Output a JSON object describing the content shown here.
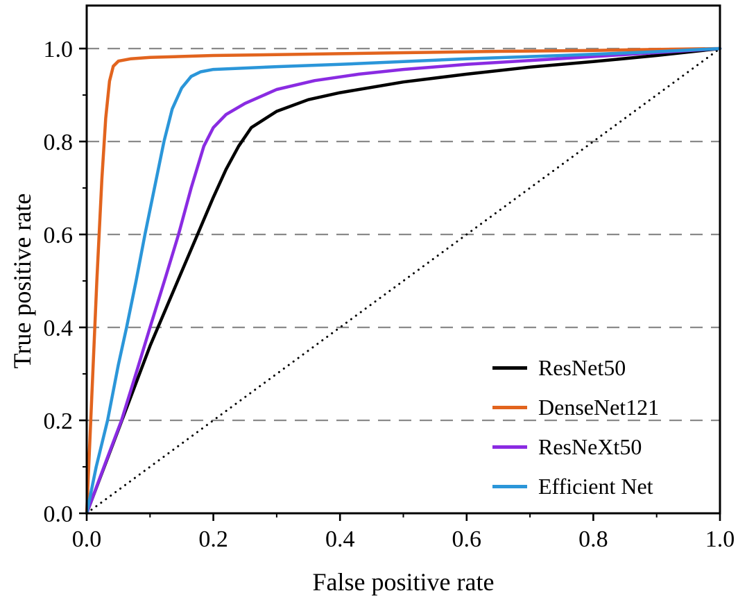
{
  "figure": {
    "background": "#ffffff"
  },
  "chart_data": {
    "type": "line",
    "chart_kind": "roc-curve",
    "title": "",
    "xlabel": "False positive rate",
    "ylabel": "True positive rate",
    "xlim": [
      0.0,
      1.0
    ],
    "ylim": [
      0.0,
      1.09
    ],
    "grid": "horizontal dashed gray gridlines at y = 0.2, 0.4, 0.6, 0.8, 1.0",
    "legend_position": "lower-right",
    "colors": {
      "grid": "#8a8a8a",
      "axis": "#000000",
      "background": "#ffffff"
    },
    "xticks": {
      "values": [
        0,
        0.2,
        0.4,
        0.6,
        0.8,
        1.0
      ],
      "labels": [
        "0.0",
        "0.2",
        "0.4",
        "0.6",
        "0.8",
        "1.0"
      ]
    },
    "yticks": {
      "values": [
        0,
        0.2,
        0.4,
        0.6,
        0.8,
        1.0
      ],
      "labels": [
        "0.0",
        "0.2",
        "0.4",
        "0.6",
        "0.8",
        "1.0"
      ]
    },
    "minor_ticks": [
      0.1,
      0.3,
      0.5,
      0.7,
      0.9
    ],
    "reference_line": {
      "name": "chance diagonal",
      "style": "dotted",
      "color": "#000000",
      "from": [
        0,
        0
      ],
      "to": [
        1,
        1
      ]
    },
    "series": [
      {
        "name": "ResNet50",
        "color": "#000000",
        "points": [
          [
            0,
            0
          ],
          [
            0.05,
            0.18
          ],
          [
            0.1,
            0.36
          ],
          [
            0.15,
            0.52
          ],
          [
            0.175,
            0.6
          ],
          [
            0.2,
            0.68
          ],
          [
            0.22,
            0.74
          ],
          [
            0.24,
            0.79
          ],
          [
            0.26,
            0.83
          ],
          [
            0.3,
            0.865
          ],
          [
            0.35,
            0.89
          ],
          [
            0.4,
            0.905
          ],
          [
            0.5,
            0.928
          ],
          [
            0.6,
            0.945
          ],
          [
            0.7,
            0.96
          ],
          [
            0.8,
            0.972
          ],
          [
            0.9,
            0.985
          ],
          [
            1,
            1
          ]
        ]
      },
      {
        "name": "DenseNet121",
        "color": "#e2641e",
        "points": [
          [
            0,
            0
          ],
          [
            0.008,
            0.25
          ],
          [
            0.016,
            0.5
          ],
          [
            0.024,
            0.72
          ],
          [
            0.03,
            0.85
          ],
          [
            0.036,
            0.93
          ],
          [
            0.042,
            0.962
          ],
          [
            0.05,
            0.973
          ],
          [
            0.07,
            0.978
          ],
          [
            0.1,
            0.981
          ],
          [
            0.15,
            0.983
          ],
          [
            0.2,
            0.985
          ],
          [
            0.3,
            0.987
          ],
          [
            0.4,
            0.989
          ],
          [
            0.5,
            0.991
          ],
          [
            0.65,
            0.994
          ],
          [
            0.8,
            0.996
          ],
          [
            0.9,
            0.998
          ],
          [
            1,
            1
          ]
        ]
      },
      {
        "name": "ResNeXt50",
        "color": "#8a2be2",
        "points": [
          [
            0,
            0
          ],
          [
            0.03,
            0.11
          ],
          [
            0.055,
            0.2
          ],
          [
            0.08,
            0.31
          ],
          [
            0.1,
            0.4
          ],
          [
            0.125,
            0.51
          ],
          [
            0.145,
            0.6
          ],
          [
            0.165,
            0.7
          ],
          [
            0.185,
            0.79
          ],
          [
            0.2,
            0.83
          ],
          [
            0.22,
            0.858
          ],
          [
            0.25,
            0.882
          ],
          [
            0.3,
            0.912
          ],
          [
            0.36,
            0.931
          ],
          [
            0.43,
            0.945
          ],
          [
            0.5,
            0.955
          ],
          [
            0.6,
            0.966
          ],
          [
            0.72,
            0.976
          ],
          [
            0.85,
            0.987
          ],
          [
            1,
            1
          ]
        ]
      },
      {
        "name": "Efficient Net",
        "color": "#2b96d9",
        "points": [
          [
            0,
            0
          ],
          [
            0.015,
            0.1
          ],
          [
            0.033,
            0.2
          ],
          [
            0.05,
            0.32
          ],
          [
            0.063,
            0.4
          ],
          [
            0.078,
            0.5
          ],
          [
            0.092,
            0.6
          ],
          [
            0.107,
            0.7
          ],
          [
            0.122,
            0.8
          ],
          [
            0.135,
            0.87
          ],
          [
            0.15,
            0.915
          ],
          [
            0.165,
            0.94
          ],
          [
            0.18,
            0.95
          ],
          [
            0.2,
            0.955
          ],
          [
            0.3,
            0.961
          ],
          [
            0.4,
            0.966
          ],
          [
            0.5,
            0.972
          ],
          [
            0.6,
            0.978
          ],
          [
            0.75,
            0.985
          ],
          [
            0.88,
            0.992
          ],
          [
            1,
            1
          ]
        ]
      }
    ]
  }
}
